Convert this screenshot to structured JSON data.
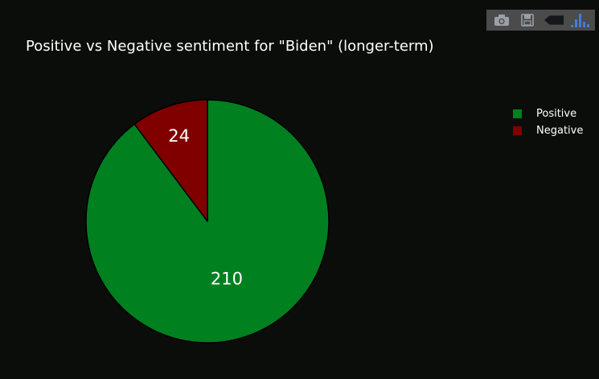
{
  "modebar": {
    "buttons": [
      {
        "icon": "camera-icon"
      },
      {
        "icon": "save-icon"
      },
      {
        "icon": "tag-icon"
      },
      {
        "icon": "plotly-logo-icon"
      }
    ]
  },
  "chart_data": {
    "type": "pie",
    "title": "Positive vs Negative sentiment for \"Biden\" (longer-term)",
    "labels": [
      "Positive",
      "Negative"
    ],
    "values": [
      210,
      24
    ],
    "colors": [
      "#00801f",
      "#800000"
    ],
    "legend_position": "top-right",
    "direction": "clockwise",
    "start_angle_deg": 90
  }
}
